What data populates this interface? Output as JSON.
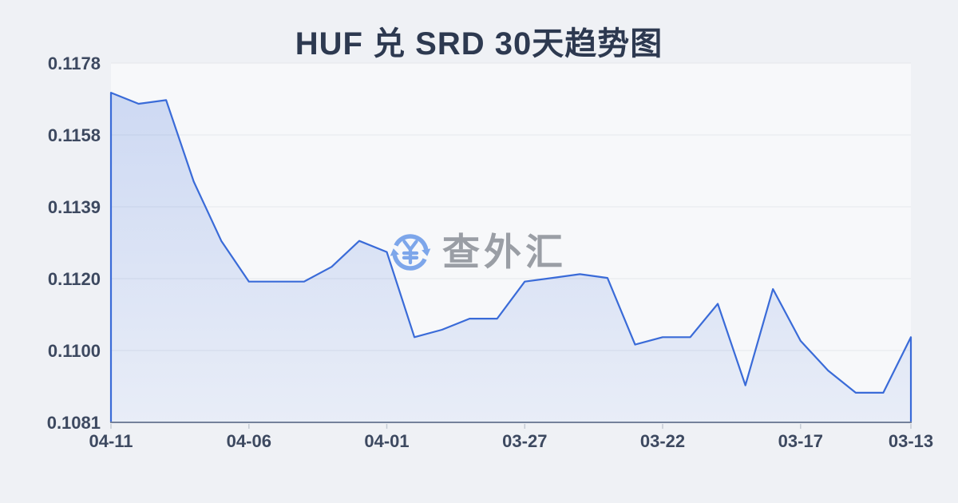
{
  "page": {
    "title": "HUF 兑 SRD 30天趋势图",
    "watermark": {
      "text": "查外汇",
      "icon": "yen-circular-exchange-arrows-icon"
    }
  },
  "colors": {
    "background": "#eff1f5",
    "plot_background": "#f7f8fa",
    "grid_line": "#e4e7ec",
    "axis_line": "#74819b",
    "axis_tick": "#c4cad4",
    "axis_label": "#3d4960",
    "title_text": "#2d3950",
    "series_line": "#3a6bd8",
    "series_area_top": "rgba(58,107,216,0.22)",
    "series_area_bottom": "rgba(58,107,216,0.08)",
    "watermark_text": "#9a9ea5",
    "watermark_icon": "#7da6ea"
  },
  "chart_data": {
    "type": "area",
    "title": "HUF 兑 SRD 30天趋势图",
    "x": [
      "04-11",
      "04-10",
      "04-09",
      "04-08",
      "04-07",
      "04-06",
      "04-05",
      "04-04",
      "04-03",
      "04-02",
      "04-01",
      "03-31",
      "03-30",
      "03-29",
      "03-28",
      "03-27",
      "03-26",
      "03-25",
      "03-24",
      "03-23",
      "03-22",
      "03-21",
      "03-20",
      "03-19",
      "03-18",
      "03-17",
      "03-16",
      "03-15",
      "03-14",
      "03-13"
    ],
    "values": [
      0.117,
      0.1167,
      0.1168,
      0.1146,
      0.113,
      0.1119,
      0.1119,
      0.1119,
      0.1123,
      0.113,
      0.1127,
      0.1104,
      0.1106,
      0.1109,
      0.1109,
      0.1119,
      0.112,
      0.1121,
      0.112,
      0.1102,
      0.1104,
      0.1104,
      0.1113,
      0.1091,
      0.1117,
      0.1103,
      0.1095,
      0.1089,
      0.1089,
      0.1104
    ],
    "y_tick_labels": [
      "0.1178",
      "0.1158",
      "0.1139",
      "0.1120",
      "0.1100",
      "0.1081"
    ],
    "x_tick_labels": [
      "04-11",
      "04-06",
      "04-01",
      "03-27",
      "03-22",
      "03-17",
      "03-13"
    ],
    "x_tick_indices": [
      0,
      5,
      10,
      15,
      20,
      25,
      29
    ],
    "ylim": [
      0.1081,
      0.1178
    ],
    "xlabel": "",
    "ylabel": "",
    "grid": true,
    "legend": "none"
  }
}
